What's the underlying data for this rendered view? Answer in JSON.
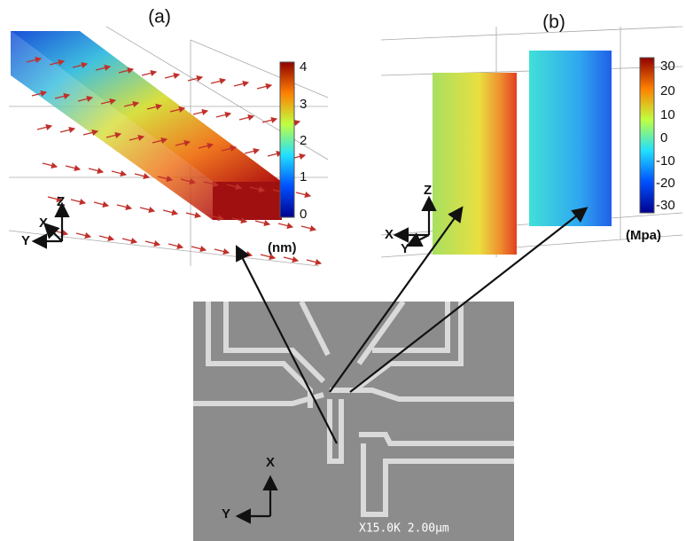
{
  "panel_a": {
    "label": "(a)",
    "colorbar_ticks": [
      4,
      3,
      2,
      1,
      0
    ],
    "unit": "(nm)",
    "axes": [
      "X",
      "Y",
      "Z"
    ]
  },
  "panel_b": {
    "label": "(b)",
    "colorbar_ticks": [
      30,
      20,
      10,
      0,
      -10,
      -20,
      -30
    ],
    "unit": "(Mpa)",
    "axes": [
      "X",
      "Y",
      "Z"
    ]
  },
  "sem": {
    "axes": [
      "X",
      "Y"
    ],
    "scale": "X15.0K 2.00µm"
  }
}
